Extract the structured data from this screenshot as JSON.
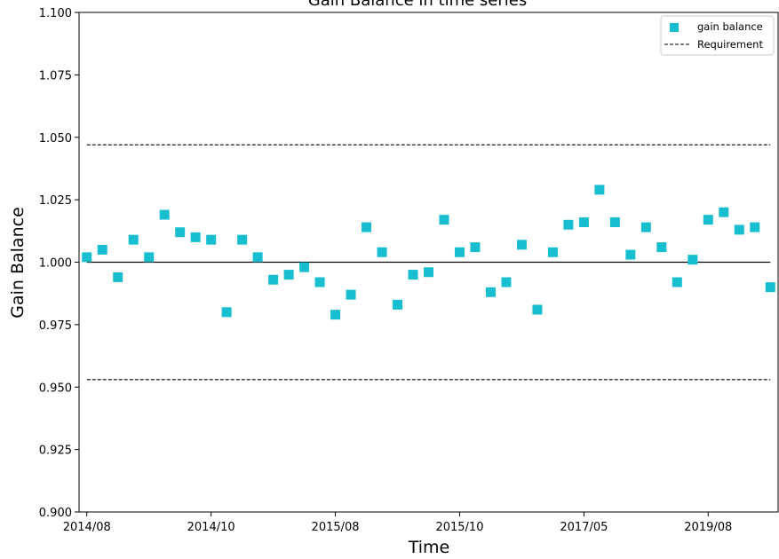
{
  "chart_data": {
    "type": "scatter",
    "title": "Gain Balance in time series",
    "xlabel": "Time",
    "ylabel": "Gain Balance",
    "ylim": [
      0.9,
      1.1
    ],
    "yticks": [
      "0.900",
      "0.925",
      "0.950",
      "0.975",
      "1.000",
      "1.025",
      "1.050",
      "1.075",
      "1.100"
    ],
    "xticks": [
      "2014/08",
      "2014/10",
      "2015/08",
      "2015/10",
      "2017/05",
      "2019/08"
    ],
    "x_index_range": [
      -0.5,
      44.5
    ],
    "xtick_positions": [
      0,
      8,
      16,
      24,
      32,
      40
    ],
    "series": [
      {
        "name": "gain balance",
        "marker": "square",
        "color": "#17becf",
        "values": [
          1.002,
          1.005,
          0.994,
          1.009,
          1.002,
          1.019,
          1.012,
          1.01,
          1.009,
          0.98,
          1.009,
          1.002,
          0.993,
          0.995,
          0.998,
          0.992,
          0.979,
          0.987,
          1.014,
          1.004,
          0.983,
          0.995,
          0.996,
          1.017,
          1.004,
          1.006,
          0.988,
          0.992,
          1.007,
          0.981,
          1.004,
          1.015,
          1.016,
          1.029,
          1.016,
          1.003,
          1.014,
          1.006,
          0.992,
          1.001,
          1.017,
          1.02,
          1.013,
          1.014,
          0.99
        ]
      }
    ],
    "requirement": {
      "name": "Requirement",
      "upper": 1.047,
      "lower": 0.953,
      "style": "dashed",
      "color": "#000000"
    },
    "baseline": {
      "value": 1.0,
      "color": "#000000"
    },
    "legend_position": "top-right",
    "grid": false
  }
}
